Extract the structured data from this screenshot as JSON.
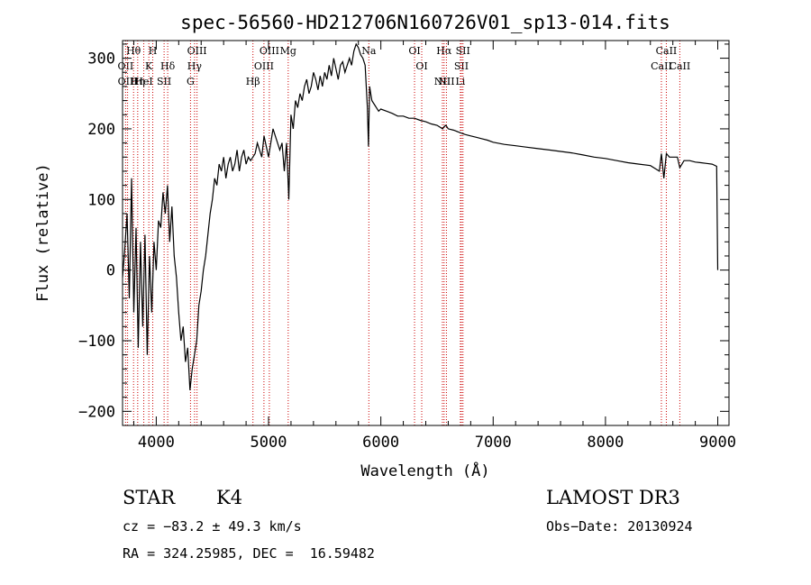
{
  "chart_data": {
    "type": "line",
    "title": "spec-56560-HD212706N160726V01_sp13-014.fits",
    "xlabel": "Wavelength (Å)",
    "ylabel": "Flux (relative)",
    "xlim": [
      3700,
      9100
    ],
    "ylim": [
      -220,
      325
    ],
    "x_ticks": [
      4000,
      5000,
      6000,
      7000,
      8000,
      9000
    ],
    "x_tick_labels": [
      "4000",
      "5000",
      "6000",
      "7000",
      "8000",
      "9000"
    ],
    "y_ticks": [
      -200,
      -100,
      0,
      100,
      200,
      300
    ],
    "y_tick_labels": [
      "−200",
      "−100",
      "0",
      "100",
      "200",
      "300"
    ],
    "grid": false,
    "series": [
      {
        "name": "flux",
        "x": [
          3700,
          3720,
          3740,
          3760,
          3780,
          3800,
          3820,
          3840,
          3860,
          3880,
          3900,
          3920,
          3940,
          3960,
          3980,
          4000,
          4020,
          4040,
          4060,
          4080,
          4100,
          4120,
          4140,
          4160,
          4180,
          4200,
          4220,
          4240,
          4260,
          4280,
          4300,
          4320,
          4340,
          4360,
          4380,
          4400,
          4420,
          4440,
          4460,
          4480,
          4500,
          4520,
          4540,
          4560,
          4580,
          4600,
          4620,
          4640,
          4660,
          4680,
          4700,
          4720,
          4740,
          4760,
          4780,
          4800,
          4820,
          4840,
          4860,
          4880,
          4900,
          4920,
          4940,
          4960,
          4980,
          5000,
          5020,
          5040,
          5060,
          5080,
          5100,
          5120,
          5140,
          5160,
          5180,
          5200,
          5220,
          5240,
          5260,
          5280,
          5300,
          5320,
          5340,
          5360,
          5380,
          5400,
          5420,
          5440,
          5460,
          5480,
          5500,
          5520,
          5540,
          5560,
          5580,
          5600,
          5620,
          5640,
          5660,
          5680,
          5700,
          5720,
          5740,
          5760,
          5780,
          5800,
          5820,
          5840,
          5860,
          5880,
          5890,
          5900,
          5910,
          5920,
          5940,
          5960,
          5980,
          6000,
          6050,
          6100,
          6150,
          6200,
          6250,
          6300,
          6350,
          6400,
          6450,
          6500,
          6550,
          6563,
          6580,
          6600,
          6650,
          6700,
          6750,
          6800,
          6850,
          6900,
          6950,
          7000,
          7100,
          7200,
          7300,
          7400,
          7500,
          7600,
          7700,
          7800,
          7900,
          8000,
          8100,
          8200,
          8300,
          8400,
          8480,
          8498,
          8520,
          8542,
          8570,
          8600,
          8640,
          8662,
          8700,
          8750,
          8800,
          8850,
          8900,
          8950,
          8990,
          9000
        ],
        "values": [
          -10,
          30,
          80,
          -40,
          130,
          -60,
          60,
          -110,
          40,
          -80,
          50,
          -120,
          20,
          -60,
          40,
          0,
          70,
          60,
          110,
          80,
          120,
          40,
          90,
          20,
          -10,
          -60,
          -100,
          -80,
          -130,
          -110,
          -170,
          -140,
          -120,
          -100,
          -50,
          -30,
          0,
          20,
          50,
          80,
          100,
          130,
          120,
          150,
          140,
          160,
          130,
          150,
          160,
          140,
          150,
          170,
          140,
          160,
          170,
          150,
          160,
          155,
          160,
          165,
          180,
          170,
          160,
          190,
          175,
          160,
          180,
          200,
          190,
          180,
          170,
          180,
          140,
          180,
          100,
          220,
          200,
          240,
          230,
          250,
          240,
          260,
          270,
          250,
          260,
          280,
          270,
          255,
          275,
          260,
          280,
          270,
          290,
          275,
          300,
          285,
          270,
          290,
          295,
          280,
          290,
          300,
          290,
          310,
          320,
          315,
          305,
          300,
          290,
          230,
          175,
          260,
          250,
          240,
          235,
          230,
          225,
          228,
          225,
          222,
          218,
          218,
          215,
          215,
          212,
          210,
          207,
          205,
          200,
          203,
          205,
          200,
          198,
          195,
          192,
          190,
          188,
          186,
          184,
          181,
          178,
          176,
          174,
          172,
          170,
          168,
          166,
          163,
          160,
          158,
          155,
          152,
          150,
          148,
          140,
          165,
          130,
          165,
          160,
          160,
          160,
          145,
          155,
          155,
          153,
          152,
          151,
          150,
          147,
          0
        ]
      }
    ],
    "line_markers": [
      {
        "label": "Hθ",
        "x": 3798
      },
      {
        "label": "OII",
        "x": 3727
      },
      {
        "label": "OIII",
        "x": 3745
      },
      {
        "label": "K",
        "x": 3934
      },
      {
        "label": "HeI",
        "x": 3889
      },
      {
        "label": "Hη",
        "x": 3835
      },
      {
        "label": "H",
        "x": 3969
      },
      {
        "label": "Hδ",
        "x": 4102
      },
      {
        "label": "SII",
        "x": 4070
      },
      {
        "label": "OIII",
        "x": 4363
      },
      {
        "label": "Hγ",
        "x": 4341
      },
      {
        "label": "G",
        "x": 4305
      },
      {
        "label": "OIII",
        "x": 5007
      },
      {
        "label": "OIII",
        "x": 4959
      },
      {
        "label": "Hβ",
        "x": 4861
      },
      {
        "label": "Mg",
        "x": 5175
      },
      {
        "label": "Na",
        "x": 5893
      },
      {
        "label": "OI",
        "x": 6300
      },
      {
        "label": "OI",
        "x": 6364
      },
      {
        "label": "Hα",
        "x": 6563
      },
      {
        "label": "SII",
        "x": 6717
      },
      {
        "label": "NII",
        "x": 6584
      },
      {
        "label": "Li",
        "x": 6708
      },
      {
        "label": "NII",
        "x": 6548
      },
      {
        "label": "SII",
        "x": 6731
      },
      {
        "label": "CaII",
        "x": 8542
      },
      {
        "label": "CaII",
        "x": 8498
      },
      {
        "label": "CaII",
        "x": 8662
      }
    ]
  },
  "info": {
    "object_class": "STAR",
    "subclass": "K4",
    "survey": "LAMOST DR3",
    "redshift": "cz = −83.2 ± 49.3 km/s",
    "obs_date": "Obs−Date: 20130924",
    "coords": "RA = 324.25985, DEC =  16.59482"
  }
}
